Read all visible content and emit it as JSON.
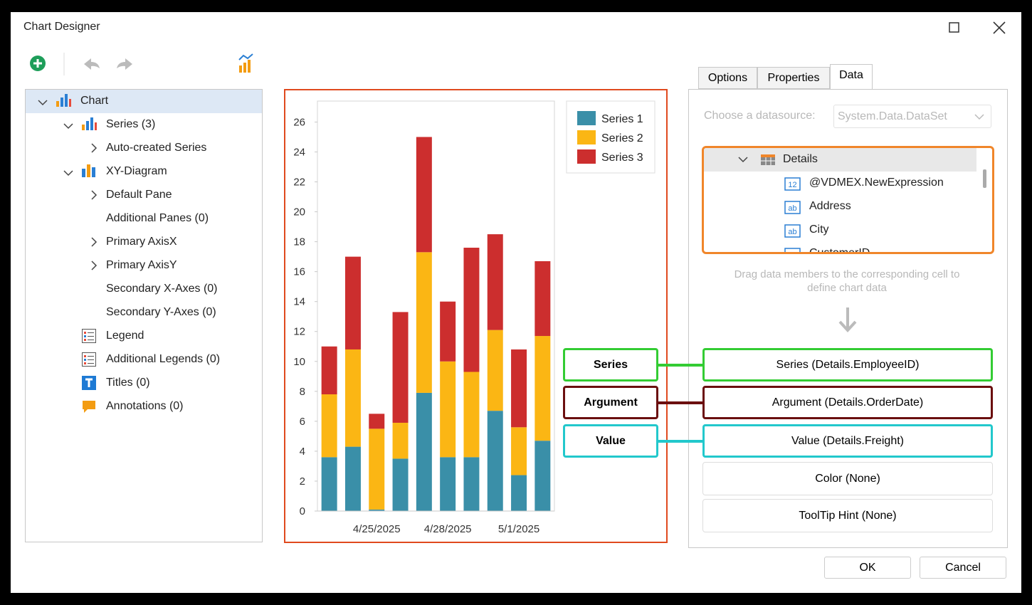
{
  "window": {
    "title": "Chart Designer"
  },
  "tree": {
    "items": [
      "Chart",
      "Series (3)",
      "Auto-created Series",
      "XY-Diagram",
      "Default Pane",
      "Additional Panes (0)",
      "Primary AxisX",
      "Primary AxisY",
      "Secondary X-Axes (0)",
      "Secondary Y-Axes (0)",
      "Legend",
      "Additional Legends (0)",
      "Titles (0)",
      "Annotations (0)"
    ]
  },
  "chart_data": {
    "type": "bar",
    "stacked": true,
    "categories": [
      null,
      null,
      "4/25/2025",
      null,
      null,
      "4/28/2025",
      null,
      null,
      "5/1/2025",
      null
    ],
    "series": [
      {
        "name": "Series 1",
        "color": "#3a8fa8",
        "values": [
          3.6,
          4.3,
          0.1,
          3.5,
          7.9,
          3.6,
          3.6,
          6.7,
          2.4,
          4.7
        ]
      },
      {
        "name": "Series 2",
        "color": "#fbb614",
        "values": [
          4.2,
          6.5,
          5.4,
          2.4,
          9.4,
          6.4,
          5.7,
          5.4,
          3.2,
          7.0
        ]
      },
      {
        "name": "Series 3",
        "color": "#cc2e2e",
        "values": [
          3.2,
          6.2,
          1.0,
          7.4,
          7.7,
          4.0,
          8.3,
          6.4,
          5.2,
          5.0
        ]
      }
    ],
    "ylim": [
      0,
      27.4
    ],
    "yticks": [
      0,
      2,
      4,
      6,
      8,
      10,
      12,
      14,
      16,
      18,
      20,
      22,
      24,
      26
    ],
    "grid": false,
    "legend": "top-right"
  },
  "tabs": [
    "Options",
    "Properties",
    "Data"
  ],
  "datasource": {
    "label": "Choose a datasource:",
    "value": "System.Data.DataSet"
  },
  "fields": {
    "group": "Details",
    "items": [
      "@VDMEX.NewExpression",
      "Address",
      "City",
      "CustomerID"
    ]
  },
  "hint": "Drag data members to the corresponding cell to define chart data",
  "mappings": [
    "Series (Details.EmployeeID)",
    "Argument (Details.OrderDate)",
    "Value (Details.Freight)",
    "Color (None)",
    "ToolTip Hint (None)"
  ],
  "callouts": [
    "Series",
    "Argument",
    "Value"
  ],
  "buttons": [
    "OK",
    "Cancel"
  ]
}
